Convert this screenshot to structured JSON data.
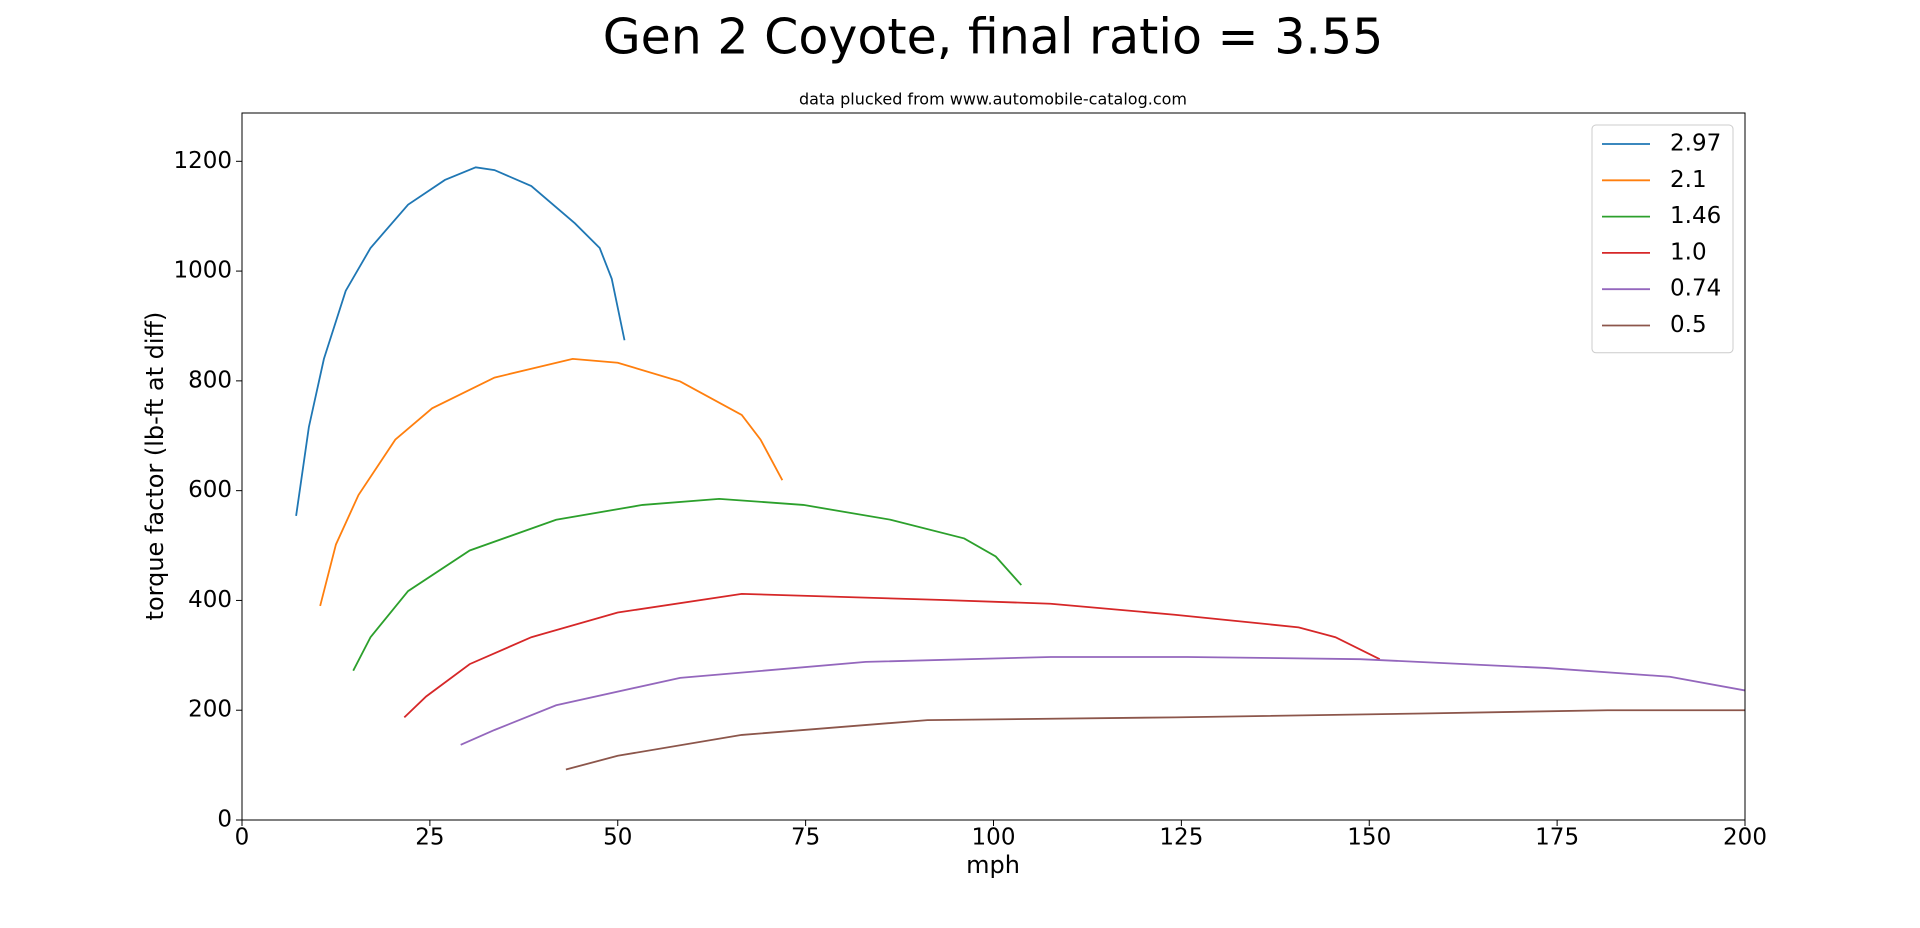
{
  "chart_data": {
    "type": "line",
    "title": "Gen 2 Coyote, final ratio = 3.55",
    "subtitle": "data plucked from www.automobile-catalog.com",
    "x_label": "mph",
    "y_label": "torque factor (lb-ft at diff)",
    "xlim": [
      0,
      200
    ],
    "xticks": [
      0,
      25,
      50,
      75,
      100,
      125,
      150,
      175,
      200
    ],
    "ylim": [
      0,
      1288
    ],
    "yticks": [
      0,
      200,
      400,
      600,
      800,
      1000,
      1200
    ],
    "grid": false,
    "legend": "upper right",
    "series": [
      {
        "name": "2.97",
        "color": "#1f77b4",
        "x": [
          7.2,
          8.9,
          10.9,
          13.8,
          17.1,
          22.1,
          27,
          31.1,
          33.6,
          38.5,
          44.3,
          47.6,
          49.2,
          50.9
        ],
        "values": [
          554,
          716,
          840,
          964,
          1042,
          1121,
          1166,
          1189,
          1184,
          1155,
          1087,
          1042,
          986,
          874
        ]
      },
      {
        "name": "2.1",
        "color": "#ff7f0e",
        "x": [
          10.4,
          12.5,
          15.5,
          20.4,
          25.3,
          33.6,
          44,
          50,
          58.3,
          66.5,
          69,
          71.9
        ],
        "values": [
          390,
          502,
          592,
          693,
          750,
          806,
          840,
          833,
          799,
          738,
          693,
          619
        ]
      },
      {
        "name": "1.46",
        "color": "#2ca02c",
        "x": [
          14.8,
          17.1,
          22.1,
          30.3,
          41.8,
          53.3,
          63.5,
          74.7,
          86.3,
          96.1,
          100.3,
          103.7
        ],
        "values": [
          272,
          333,
          417,
          491,
          547,
          574,
          585,
          574,
          547,
          513,
          480,
          428
        ]
      },
      {
        "name": "1.0",
        "color": "#d62728",
        "x": [
          21.6,
          24.5,
          30.3,
          38.5,
          50,
          66.5,
          92.8,
          107.6,
          124.1,
          140.6,
          145.5,
          151.4
        ],
        "values": [
          187,
          225,
          284,
          333,
          378,
          412,
          401,
          394,
          374,
          351,
          333,
          293
        ]
      },
      {
        "name": "0.74",
        "color": "#9467bd",
        "x": [
          29.1,
          33.6,
          41.8,
          58.3,
          83,
          107.6,
          125.8,
          148.8,
          173.5,
          190,
          200
        ],
        "values": [
          137,
          164,
          209,
          259,
          288,
          297,
          297,
          293,
          277,
          261,
          236
        ]
      },
      {
        "name": "0.5",
        "color": "#8c564b",
        "x": [
          43.1,
          50,
          66.5,
          91.2,
          124.1,
          157,
          181.7,
          200
        ],
        "values": [
          92,
          117,
          155,
          182,
          187,
          194,
          200,
          200
        ]
      }
    ]
  }
}
